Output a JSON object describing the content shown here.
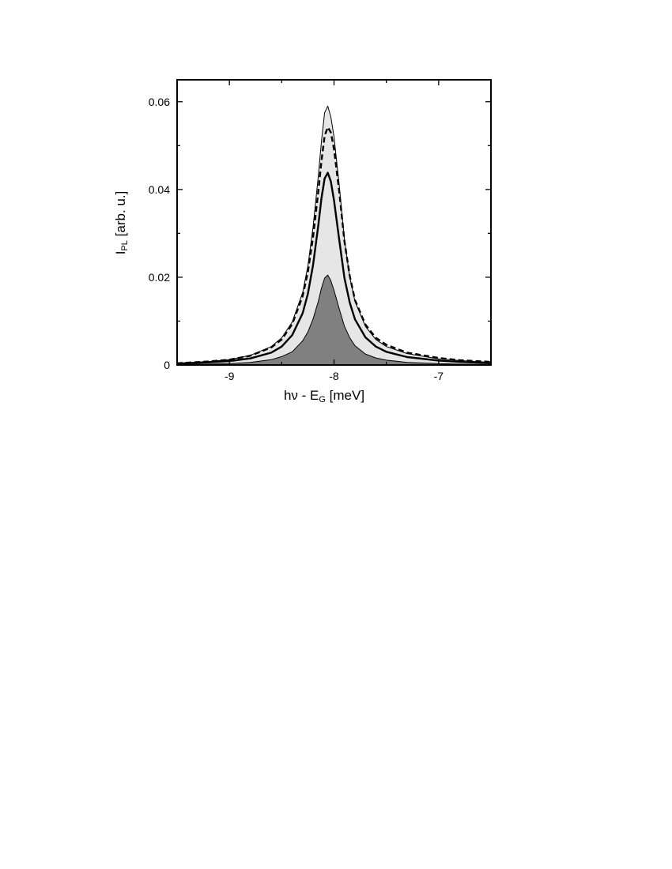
{
  "chart_data": {
    "type": "area",
    "title": "",
    "xlabel": {
      "main": "hν - E",
      "sub": "G",
      "unit": " [meV]"
    },
    "ylabel": {
      "main": "I",
      "sub": "PL",
      "unit": " [arb. u.]"
    },
    "xlim": [
      -9.5,
      -6.5
    ],
    "ylim": [
      0,
      0.065
    ],
    "x_ticks": [
      -9,
      -8,
      -7
    ],
    "x_tick_labels": [
      "-9",
      "-8",
      "-7"
    ],
    "y_ticks": [
      0,
      0.02,
      0.04,
      0.06
    ],
    "y_tick_labels": [
      "0",
      "0.02",
      "0.04",
      "0.06"
    ],
    "grid": false,
    "legend": null,
    "series": [
      {
        "style": "thin-outline-lightgray-fill",
        "fill": "#e6e6e6",
        "x": [
          -9.5,
          -9.2,
          -9.0,
          -8.8,
          -8.6,
          -8.5,
          -8.4,
          -8.3,
          -8.25,
          -8.2,
          -8.15,
          -8.12,
          -8.09,
          -8.06,
          -8.03,
          -8.0,
          -7.95,
          -7.9,
          -7.85,
          -7.8,
          -7.7,
          -7.6,
          -7.5,
          -7.3,
          -7.0,
          -6.8,
          -6.5
        ],
        "y": [
          0.0004,
          0.0008,
          0.0012,
          0.0022,
          0.0042,
          0.0062,
          0.0098,
          0.0165,
          0.0225,
          0.0315,
          0.043,
          0.051,
          0.0575,
          0.059,
          0.0565,
          0.052,
          0.041,
          0.0285,
          0.02,
          0.0145,
          0.0088,
          0.0058,
          0.0042,
          0.0026,
          0.0014,
          0.001,
          0.0006
        ]
      },
      {
        "style": "thick-dashed",
        "x": [
          -9.5,
          -9.2,
          -9.0,
          -8.8,
          -8.6,
          -8.5,
          -8.4,
          -8.3,
          -8.25,
          -8.2,
          -8.15,
          -8.12,
          -8.09,
          -8.06,
          -8.03,
          -8.0,
          -7.95,
          -7.9,
          -7.85,
          -7.8,
          -7.7,
          -7.6,
          -7.5,
          -7.3,
          -7.0,
          -6.8,
          -6.5
        ],
        "y": [
          0.0004,
          0.0008,
          0.0012,
          0.0021,
          0.004,
          0.0058,
          0.0093,
          0.0157,
          0.0212,
          0.0292,
          0.0395,
          0.0465,
          0.0522,
          0.0542,
          0.053,
          0.0492,
          0.0395,
          0.0282,
          0.0203,
          0.0148,
          0.0092,
          0.0062,
          0.0046,
          0.0028,
          0.0016,
          0.0011,
          0.0007
        ]
      },
      {
        "style": "thick-solid",
        "x": [
          -9.5,
          -9.2,
          -9.0,
          -8.8,
          -8.6,
          -8.5,
          -8.4,
          -8.3,
          -8.25,
          -8.2,
          -8.15,
          -8.12,
          -8.09,
          -8.06,
          -8.03,
          -8.0,
          -7.95,
          -7.9,
          -7.85,
          -7.8,
          -7.7,
          -7.6,
          -7.5,
          -7.3,
          -7.0,
          -6.8,
          -6.5
        ],
        "y": [
          0.0003,
          0.0006,
          0.0009,
          0.0015,
          0.0028,
          0.0042,
          0.0068,
          0.0118,
          0.0162,
          0.0228,
          0.0318,
          0.038,
          0.0425,
          0.0438,
          0.0418,
          0.0375,
          0.0285,
          0.0198,
          0.0142,
          0.0104,
          0.0063,
          0.0042,
          0.003,
          0.0018,
          0.001,
          0.0007,
          0.0004
        ]
      },
      {
        "style": "thin-outline-darkgray-fill",
        "fill": "#808080",
        "x": [
          -9.5,
          -9.2,
          -9.0,
          -8.8,
          -8.6,
          -8.5,
          -8.4,
          -8.3,
          -8.25,
          -8.2,
          -8.15,
          -8.12,
          -8.09,
          -8.06,
          -8.03,
          -8.0,
          -7.95,
          -7.9,
          -7.85,
          -7.8,
          -7.7,
          -7.6,
          -7.5,
          -7.3,
          -7.0,
          -6.8,
          -6.5
        ],
        "y": [
          0.0001,
          0.0002,
          0.0003,
          0.0006,
          0.0012,
          0.0019,
          0.003,
          0.0055,
          0.0075,
          0.0105,
          0.0145,
          0.0175,
          0.0198,
          0.0205,
          0.0192,
          0.017,
          0.0128,
          0.0088,
          0.0062,
          0.0044,
          0.0025,
          0.0016,
          0.0011,
          0.0006,
          0.0003,
          0.0002,
          0.0001
        ]
      }
    ]
  }
}
